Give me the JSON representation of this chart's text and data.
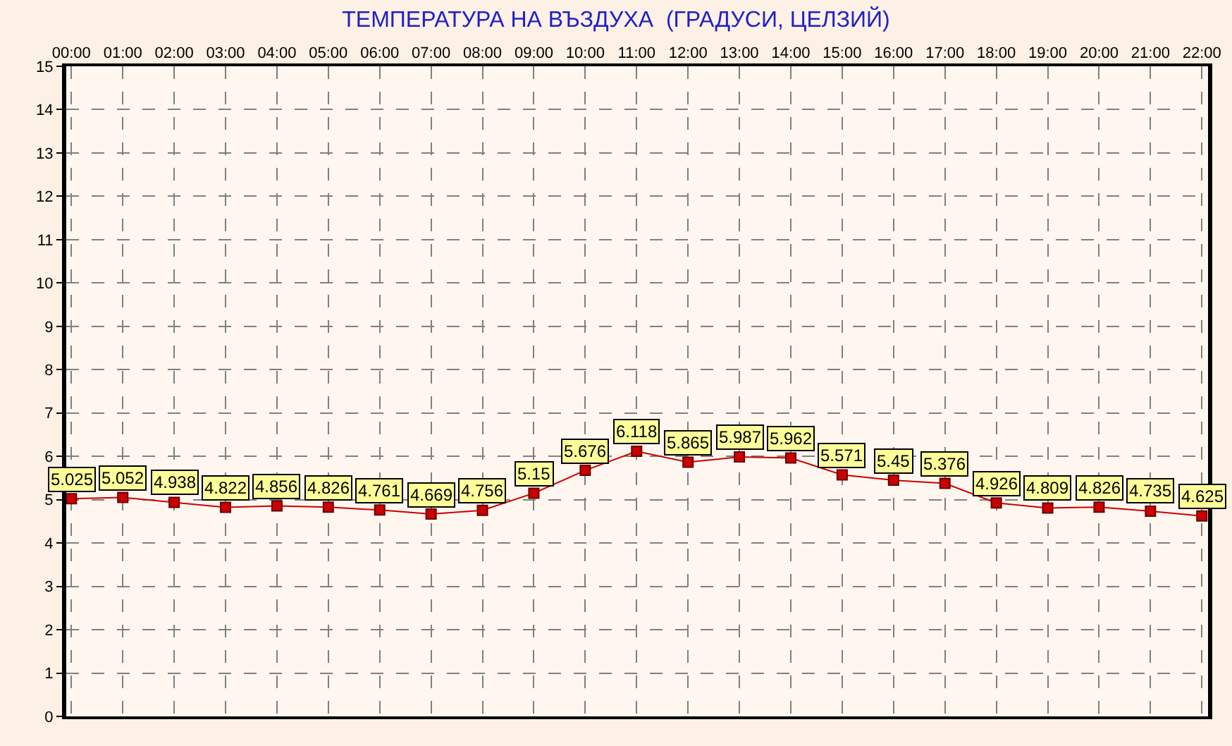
{
  "chart_data": {
    "type": "line",
    "title": "ТЕМПЕРАТУРА НА ВЪЗДУХА  (ГРАДУСИ, ЦЕЛЗИЙ)",
    "categories": [
      "00:00",
      "01:00",
      "02:00",
      "03:00",
      "04:00",
      "05:00",
      "06:00",
      "07:00",
      "08:00",
      "09:00",
      "10:00",
      "11:00",
      "12:00",
      "13:00",
      "14:00",
      "15:00",
      "16:00",
      "17:00",
      "18:00",
      "19:00",
      "20:00",
      "21:00",
      "22:00"
    ],
    "series": [
      {
        "color": "#cc0000",
        "values": [
          5.025,
          5.052,
          4.938,
          4.822,
          4.856,
          4.826,
          4.761,
          4.669,
          4.756,
          5.15,
          5.676,
          6.118,
          5.865,
          5.987,
          5.962,
          5.571,
          5.45,
          5.376,
          4.926,
          4.809,
          4.826,
          4.735,
          4.625
        ]
      }
    ],
    "ylim": [
      0,
      15
    ],
    "yticks": [
      0,
      1,
      2,
      3,
      4,
      5,
      6,
      7,
      8,
      9,
      10,
      11,
      12,
      13,
      14,
      15
    ],
    "grid": true,
    "marker": "square",
    "line_style": "solid",
    "data_labels": true
  }
}
